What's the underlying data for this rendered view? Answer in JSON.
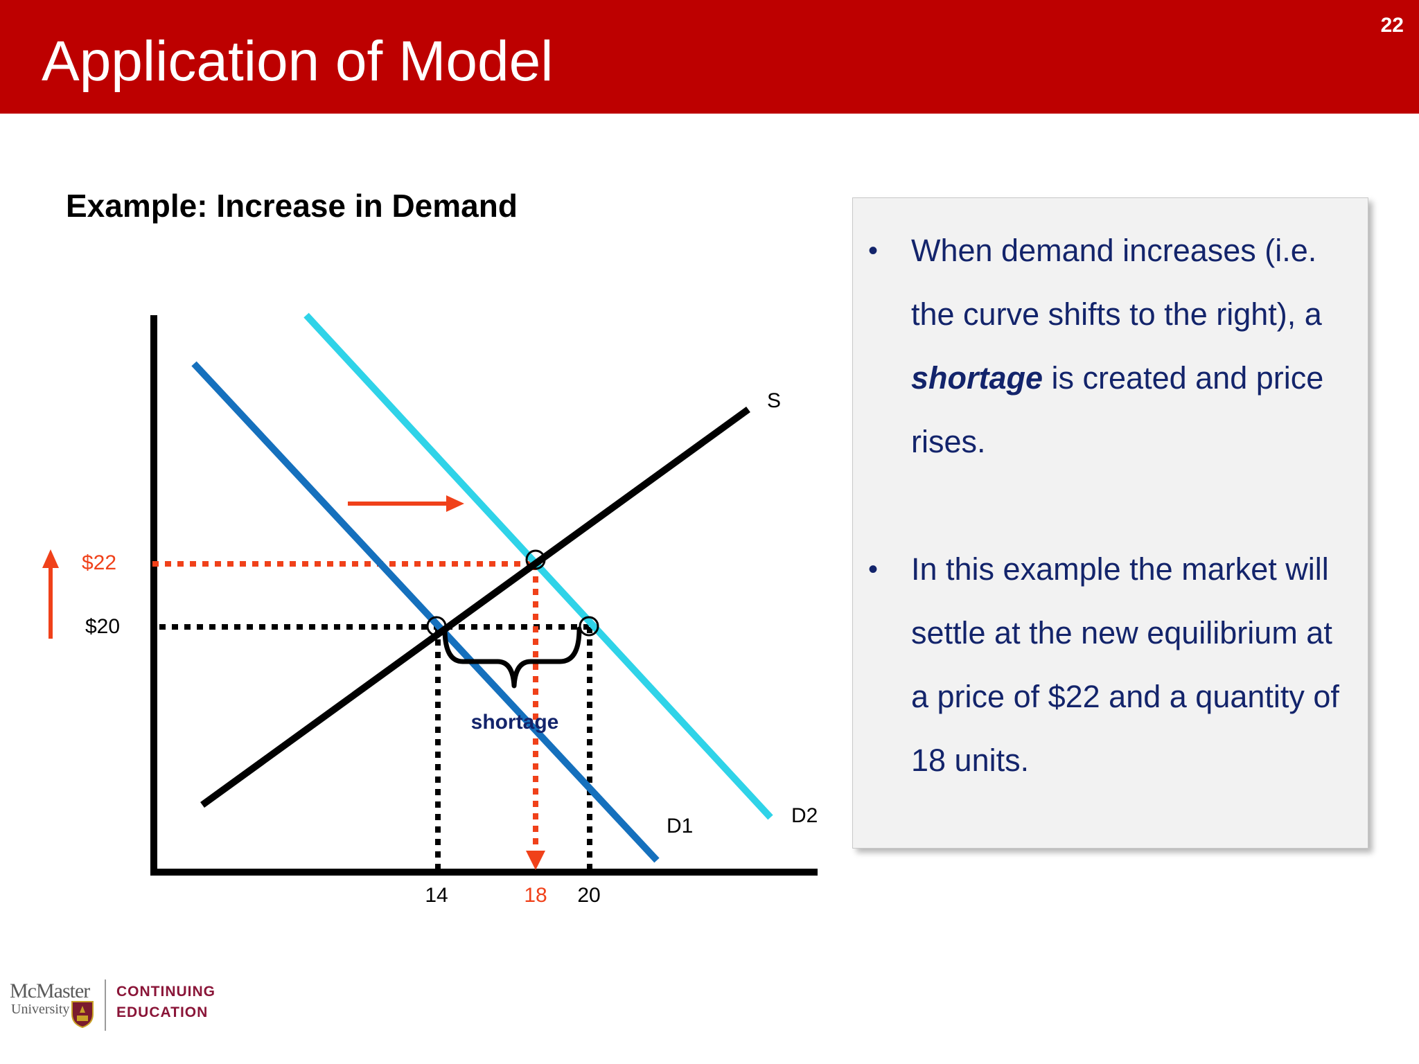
{
  "slide": {
    "title": "Application of Model",
    "number": "22",
    "subtitle": "Example: Increase in Demand"
  },
  "diagram": {
    "curves": [
      {
        "name": "S",
        "label": "S",
        "color": "#000000"
      },
      {
        "name": "D1",
        "label": "D1",
        "color": "#1570bd"
      },
      {
        "name": "D2",
        "label": "D2",
        "color": "#2fd3e8"
      }
    ],
    "price_labels": {
      "old": "$20",
      "new": "$22"
    },
    "quantity_labels": {
      "q1": "14",
      "q_new": "18",
      "q2": "20"
    },
    "shortage_label": "shortage",
    "colors": {
      "highlight": "#f0411a",
      "axis": "#000000",
      "shortage_text": "#13246b"
    },
    "old_equilibrium": {
      "price": 20,
      "quantity": 14
    },
    "new_equilibrium": {
      "price": 22,
      "quantity": 18
    },
    "shortage_quantity_range": [
      14,
      20
    ]
  },
  "info_box": {
    "bullet_1": {
      "pre": "When demand increases (i.e. the curve shifts to the right), a ",
      "emphasis": "shortage",
      "post": " is created and price rises."
    },
    "bullet_2": {
      "text": "In this example the market will settle at the new equilibrium at a price of $22 and a quantity of 18 units."
    },
    "bullet_marker": "•"
  },
  "footer": {
    "brand": "McMaster",
    "university": "University",
    "division_line1": "CONTINUING",
    "division_line2": "EDUCATION"
  }
}
